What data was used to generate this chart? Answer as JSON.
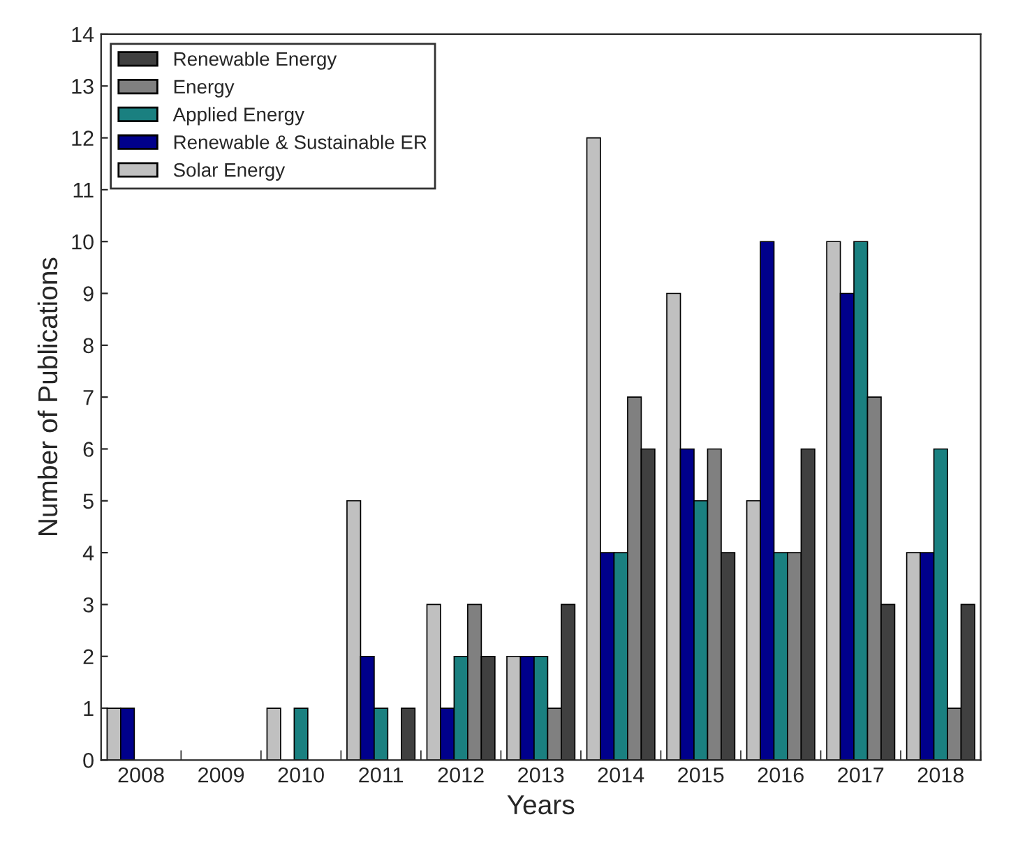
{
  "chart_data": {
    "type": "bar",
    "xlabel": "Years",
    "ylabel": "Number of Publications",
    "categories": [
      "2008",
      "2009",
      "2010",
      "2011",
      "2012",
      "2013",
      "2014",
      "2015",
      "2016",
      "2017",
      "2018"
    ],
    "series": [
      {
        "name": "Solar Energy",
        "color": "#c0c0c0",
        "values": [
          1,
          0,
          1,
          5,
          3,
          2,
          12,
          9,
          5,
          10,
          4
        ]
      },
      {
        "name": "Renewable & Sustainable ER",
        "color": "#00008b",
        "values": [
          1,
          0,
          0,
          2,
          1,
          2,
          4,
          6,
          10,
          9,
          4
        ]
      },
      {
        "name": "Applied Energy",
        "color": "#1a8080",
        "values": [
          0,
          0,
          1,
          1,
          2,
          2,
          4,
          5,
          4,
          10,
          6
        ]
      },
      {
        "name": "Energy",
        "color": "#808080",
        "values": [
          0,
          0,
          0,
          0,
          3,
          1,
          7,
          6,
          4,
          7,
          1
        ]
      },
      {
        "name": "Renewable Energy",
        "color": "#404040",
        "values": [
          0,
          0,
          0,
          1,
          2,
          3,
          6,
          4,
          6,
          3,
          3
        ]
      }
    ],
    "ylim": [
      0,
      14
    ],
    "yticks": [
      0,
      1,
      2,
      3,
      4,
      5,
      6,
      7,
      8,
      9,
      10,
      11,
      12,
      13,
      14
    ],
    "grid": false,
    "legend": "top left"
  }
}
